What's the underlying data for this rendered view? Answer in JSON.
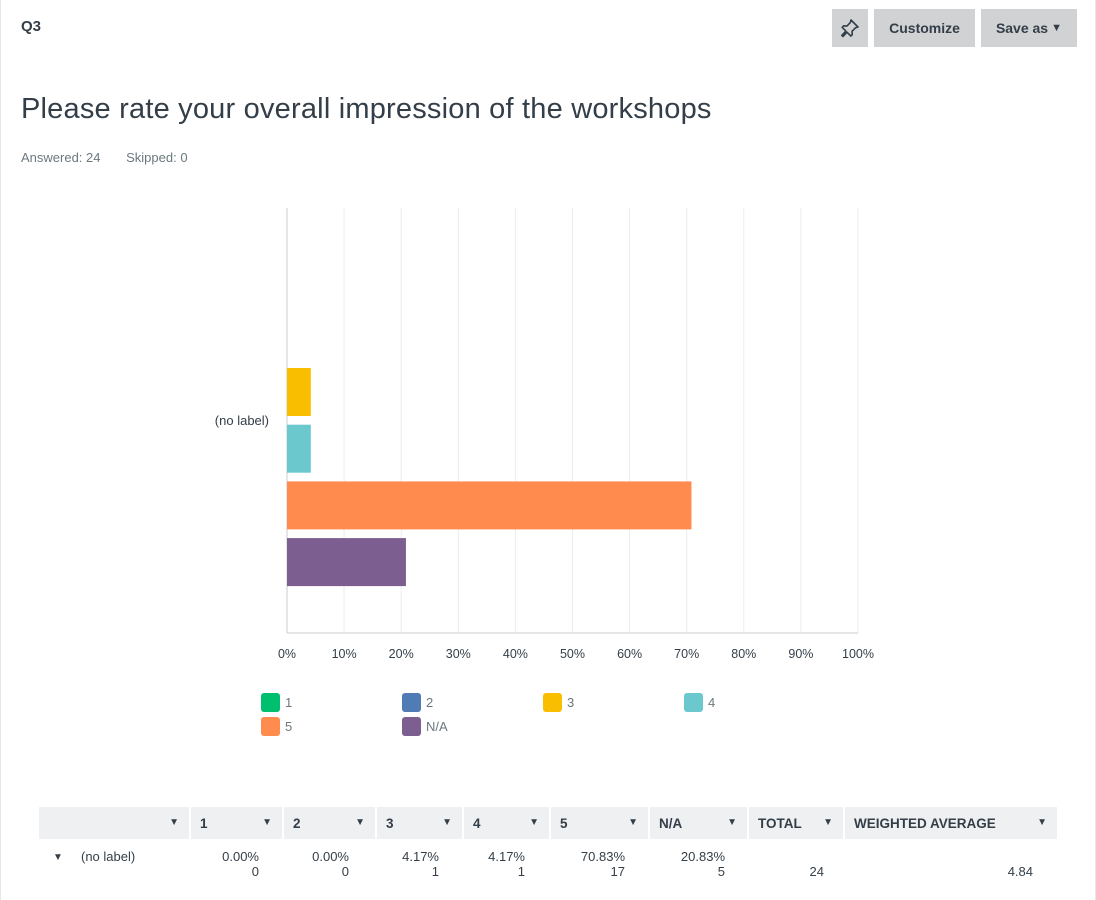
{
  "question": {
    "number": "Q3",
    "title": "Please rate your overall impression of the workshops",
    "answered": "Answered: 24",
    "skipped": "Skipped: 0"
  },
  "toolbar": {
    "pin_icon": "pin-icon",
    "customize_label": "Customize",
    "save_as_label": "Save as"
  },
  "chart_data": {
    "type": "bar",
    "orientation": "horizontal",
    "categories": [
      "(no label)"
    ],
    "series": [
      {
        "name": "1",
        "color": "#00bf6f",
        "values": [
          0
        ]
      },
      {
        "name": "2",
        "color": "#507cb6",
        "values": [
          0
        ]
      },
      {
        "name": "3",
        "color": "#f9be00",
        "values": [
          4.17
        ]
      },
      {
        "name": "4",
        "color": "#6bc8cd",
        "values": [
          4.17
        ]
      },
      {
        "name": "5",
        "color": "#ff8b4f",
        "values": [
          70.83
        ]
      },
      {
        "name": "N/A",
        "color": "#7d5e90",
        "values": [
          20.83
        ]
      }
    ],
    "xlim": [
      0,
      100
    ],
    "xticks": [
      "0%",
      "10%",
      "20%",
      "30%",
      "40%",
      "50%",
      "60%",
      "70%",
      "80%",
      "90%",
      "100%"
    ],
    "grid": true,
    "legend": "bottom"
  },
  "table": {
    "headers": [
      "",
      "1",
      "2",
      "3",
      "4",
      "5",
      "N/A",
      "TOTAL",
      "WEIGHTED AVERAGE"
    ],
    "rows": [
      {
        "label": "(no label)",
        "cells": [
          {
            "pct": "0.00%",
            "count": "0"
          },
          {
            "pct": "0.00%",
            "count": "0"
          },
          {
            "pct": "4.17%",
            "count": "1"
          },
          {
            "pct": "4.17%",
            "count": "1"
          },
          {
            "pct": "70.83%",
            "count": "17"
          },
          {
            "pct": "20.83%",
            "count": "5"
          }
        ],
        "total": "24",
        "weighted_average": "4.84"
      }
    ]
  }
}
